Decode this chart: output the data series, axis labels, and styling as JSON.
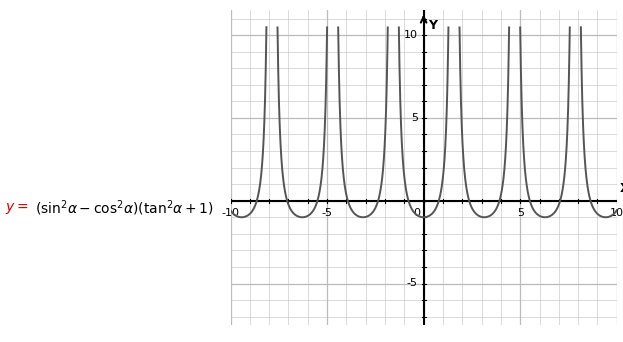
{
  "xlim": [
    -10,
    10
  ],
  "ylim": [
    -7.5,
    11.5
  ],
  "xticks": [
    -10,
    -5,
    0,
    5,
    10
  ],
  "yticks": [
    -5,
    5,
    10
  ],
  "xlabel": "X",
  "ylabel": "Y",
  "grid_color": "#cccccc",
  "grid_color2": "#bbbbbb",
  "curve_color": "#555555",
  "axis_color": "#000000",
  "bg_color": "#ffffff",
  "plot_bg_color": "#eeeeee",
  "formula_color_y": "#cc0000",
  "formula_color_rest": "#000000",
  "curve_linewidth": 1.4,
  "clip_val": 10.5,
  "formula_y": "$y=$",
  "formula_rest": "$(\\sin^2\\!\\alpha-\\cos^2\\!\\alpha)(\\tan^2\\!\\alpha+1)$"
}
